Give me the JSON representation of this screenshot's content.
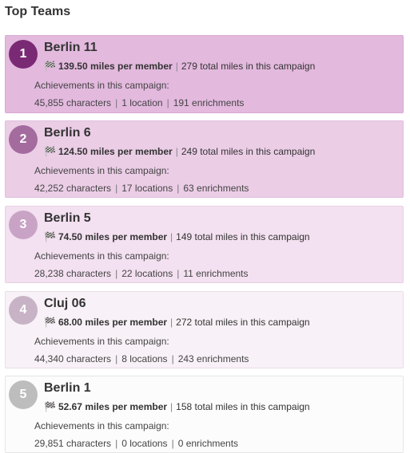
{
  "page": {
    "title": "Top Teams"
  },
  "achievements_label": "Achievements in this campaign:",
  "teams": [
    {
      "rank": "1",
      "name": "Berlin 11",
      "miles_per_member": "139.50 miles per member",
      "total_miles": "279 total miles in this campaign",
      "characters": "45,855 characters",
      "locations": "1 location",
      "enrichments": "191 enrichments",
      "bg": "#e3b9de",
      "border": "#d9a9d3",
      "badge": "#7a2a74"
    },
    {
      "rank": "2",
      "name": "Berlin 6",
      "miles_per_member": "124.50 miles per member",
      "total_miles": "249 total miles in this campaign",
      "characters": "42,252 characters",
      "locations": "17 locations",
      "enrichments": "63 enrichments",
      "bg": "#ebcde6",
      "border": "#dfbfdb",
      "badge": "#a46b9e"
    },
    {
      "rank": "3",
      "name": "Berlin 5",
      "miles_per_member": "74.50 miles per member",
      "total_miles": "149 total miles in this campaign",
      "characters": "28,238 characters",
      "locations": "22 locations",
      "enrichments": "11 enrichments",
      "bg": "#f3e0f0",
      "border": "#e6d2e4",
      "badge": "#c9a3c5"
    },
    {
      "rank": "4",
      "name": "Cluj 06",
      "miles_per_member": "68.00 miles per member",
      "total_miles": "272 total miles in this campaign",
      "characters": "44,340 characters",
      "locations": "8 locations",
      "enrichments": "243 enrichments",
      "bg": "#f8f1f7",
      "border": "#e8dfe7",
      "badge": "#c7b3c5"
    },
    {
      "rank": "5",
      "name": "Berlin 1",
      "miles_per_member": "52.67 miles per member",
      "total_miles": "158 total miles in this campaign",
      "characters": "29,851 characters",
      "locations": "0 locations",
      "enrichments": "0 enrichments",
      "bg": "#fdfcfd",
      "border": "#e6e6e6",
      "badge": "#bdbdbd"
    }
  ],
  "icons": {
    "flag": "checkered-flag-icon"
  }
}
